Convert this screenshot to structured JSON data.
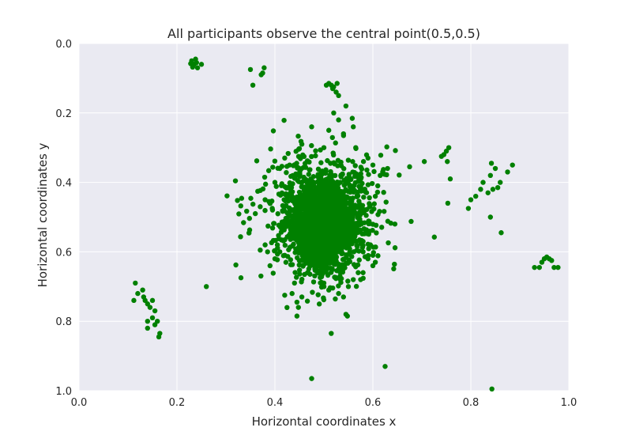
{
  "chart_data": {
    "type": "scatter",
    "title": "All participants observe the central point(0.5,0.5)",
    "xlabel": "Horizontal coordinates x",
    "ylabel": "Horizontal coordinates y",
    "xlim": [
      0.0,
      1.0
    ],
    "ylim": [
      1.0,
      0.0
    ],
    "y_inverted": true,
    "x_ticks": [
      "0.0",
      "0.2",
      "0.4",
      "0.6",
      "0.8",
      "1.0"
    ],
    "y_ticks": [
      "0.0",
      "0.2",
      "0.4",
      "0.6",
      "0.8",
      "1.0"
    ],
    "grid": true,
    "background": "#eaeaf2",
    "marker_color": "#008000",
    "series": [
      {
        "points": [
          [
            0.23,
            0.05
          ],
          [
            0.235,
            0.06
          ],
          [
            0.24,
            0.055
          ],
          [
            0.232,
            0.068
          ],
          [
            0.238,
            0.045
          ],
          [
            0.25,
            0.06
          ],
          [
            0.228,
            0.058
          ],
          [
            0.242,
            0.07
          ],
          [
            0.35,
            0.075
          ],
          [
            0.375,
            0.085
          ],
          [
            0.378,
            0.07
          ],
          [
            0.372,
            0.09
          ],
          [
            0.355,
            0.12
          ],
          [
            0.51,
            0.115
          ],
          [
            0.515,
            0.12
          ],
          [
            0.52,
            0.125
          ],
          [
            0.525,
            0.14
          ],
          [
            0.53,
            0.15
          ],
          [
            0.505,
            0.12
          ],
          [
            0.518,
            0.13
          ],
          [
            0.527,
            0.115
          ],
          [
            0.545,
            0.18
          ],
          [
            0.52,
            0.2
          ],
          [
            0.51,
            0.25
          ],
          [
            0.475,
            0.24
          ],
          [
            0.53,
            0.22
          ],
          [
            0.5,
            0.3
          ],
          [
            0.54,
            0.26
          ],
          [
            0.56,
            0.24
          ],
          [
            0.455,
            0.29
          ],
          [
            0.565,
            0.3
          ],
          [
            0.59,
            0.33
          ],
          [
            0.6,
            0.35
          ],
          [
            0.615,
            0.38
          ],
          [
            0.62,
            0.37
          ],
          [
            0.63,
            0.36
          ],
          [
            0.61,
            0.41
          ],
          [
            0.605,
            0.44
          ],
          [
            0.42,
            0.33
          ],
          [
            0.43,
            0.35
          ],
          [
            0.41,
            0.36
          ],
          [
            0.44,
            0.38
          ],
          [
            0.4,
            0.4
          ],
          [
            0.38,
            0.45
          ],
          [
            0.37,
            0.47
          ],
          [
            0.36,
            0.49
          ],
          [
            0.39,
            0.46
          ],
          [
            0.645,
            0.52
          ],
          [
            0.675,
            0.355
          ],
          [
            0.705,
            0.34
          ],
          [
            0.75,
            0.31
          ],
          [
            0.745,
            0.32
          ],
          [
            0.755,
            0.3
          ],
          [
            0.74,
            0.325
          ],
          [
            0.752,
            0.34
          ],
          [
            0.758,
            0.39
          ],
          [
            0.753,
            0.46
          ],
          [
            0.8,
            0.45
          ],
          [
            0.795,
            0.475
          ],
          [
            0.81,
            0.44
          ],
          [
            0.82,
            0.42
          ],
          [
            0.825,
            0.4
          ],
          [
            0.84,
            0.38
          ],
          [
            0.842,
            0.345
          ],
          [
            0.85,
            0.36
          ],
          [
            0.845,
            0.42
          ],
          [
            0.835,
            0.43
          ],
          [
            0.855,
            0.415
          ],
          [
            0.86,
            0.4
          ],
          [
            0.875,
            0.37
          ],
          [
            0.885,
            0.35
          ],
          [
            0.84,
            0.5
          ],
          [
            0.862,
            0.545
          ],
          [
            0.93,
            0.645
          ],
          [
            0.94,
            0.645
          ],
          [
            0.945,
            0.63
          ],
          [
            0.95,
            0.62
          ],
          [
            0.955,
            0.615
          ],
          [
            0.96,
            0.62
          ],
          [
            0.965,
            0.625
          ],
          [
            0.97,
            0.645
          ],
          [
            0.978,
            0.645
          ],
          [
            0.115,
            0.69
          ],
          [
            0.12,
            0.72
          ],
          [
            0.112,
            0.74
          ],
          [
            0.13,
            0.71
          ],
          [
            0.135,
            0.74
          ],
          [
            0.14,
            0.75
          ],
          [
            0.132,
            0.73
          ],
          [
            0.145,
            0.76
          ],
          [
            0.15,
            0.74
          ],
          [
            0.155,
            0.77
          ],
          [
            0.15,
            0.79
          ],
          [
            0.16,
            0.8
          ],
          [
            0.14,
            0.8
          ],
          [
            0.14,
            0.82
          ],
          [
            0.155,
            0.81
          ],
          [
            0.165,
            0.835
          ],
          [
            0.163,
            0.845
          ],
          [
            0.26,
            0.7
          ],
          [
            0.42,
            0.725
          ],
          [
            0.44,
            0.69
          ],
          [
            0.435,
            0.72
          ],
          [
            0.445,
            0.745
          ],
          [
            0.448,
            0.76
          ],
          [
            0.445,
            0.785
          ],
          [
            0.455,
            0.73
          ],
          [
            0.5,
            0.69
          ],
          [
            0.51,
            0.71
          ],
          [
            0.53,
            0.72
          ],
          [
            0.54,
            0.73
          ],
          [
            0.55,
            0.7
          ],
          [
            0.56,
            0.68
          ],
          [
            0.57,
            0.66
          ],
          [
            0.58,
            0.66
          ],
          [
            0.575,
            0.68
          ],
          [
            0.545,
            0.78
          ],
          [
            0.548,
            0.785
          ],
          [
            0.515,
            0.835
          ],
          [
            0.475,
            0.965
          ],
          [
            0.625,
            0.93
          ],
          [
            0.843,
            0.995
          ],
          [
            0.41,
            0.6
          ],
          [
            0.405,
            0.58
          ],
          [
            0.4,
            0.62
          ],
          [
            0.42,
            0.61
          ],
          [
            0.39,
            0.64
          ],
          [
            0.385,
            0.6
          ],
          [
            0.37,
            0.595
          ],
          [
            0.38,
            0.58
          ],
          [
            0.58,
            0.6
          ],
          [
            0.59,
            0.62
          ],
          [
            0.6,
            0.61
          ],
          [
            0.605,
            0.63
          ],
          [
            0.595,
            0.58
          ],
          [
            0.58,
            0.57
          ],
          [
            0.6,
            0.64
          ]
        ],
        "core_cluster": {
          "count": 2000,
          "center": [
            0.5,
            0.52
          ],
          "spread": [
            0.035,
            0.065
          ]
        },
        "mid_cluster": {
          "count": 450,
          "center": [
            0.5,
            0.48
          ],
          "spread": [
            0.07,
            0.1
          ]
        }
      }
    ]
  }
}
